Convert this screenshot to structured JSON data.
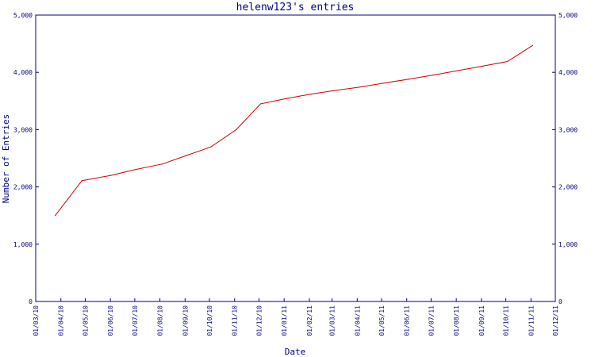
{
  "chart_data": {
    "type": "line",
    "title": "helenw123's entries",
    "xlabel": "Date",
    "ylabel": "Number of Entries",
    "x_ticks": [
      "01/03/10",
      "01/04/10",
      "01/05/10",
      "01/06/10",
      "01/07/10",
      "01/08/10",
      "01/09/10",
      "01/10/10",
      "01/11/10",
      "01/12/10",
      "01/01/11",
      "01/02/11",
      "01/03/11",
      "01/04/11",
      "01/05/11",
      "01/06/11",
      "01/07/11",
      "01/08/11",
      "01/09/11",
      "01/10/11",
      "01/11/11",
      "01/12/11"
    ],
    "y_ticks": [
      "0",
      "1,000",
      "2,000",
      "3,000",
      "4,000",
      "5,000"
    ],
    "ylim": [
      0,
      5000
    ],
    "xlim": [
      "2010-03-01",
      "2011-12-01"
    ],
    "grid": false,
    "colors": {
      "axis": "#000080",
      "line": "#cc0000",
      "background": "#ffffff"
    },
    "series": [
      {
        "x": [
          "2010-03-25",
          "2010-04-27",
          "2010-06-01",
          "2010-07-01",
          "2010-08-04",
          "2010-09-03",
          "2010-10-03",
          "2010-11-03",
          "2010-12-03",
          "2011-01-03",
          "2011-02-03",
          "2011-03-03",
          "2011-04-03",
          "2011-05-03",
          "2011-06-03",
          "2011-07-03",
          "2011-08-03",
          "2011-09-03",
          "2011-10-03",
          "2011-11-03"
        ],
        "values": [
          1500,
          2110,
          2200,
          2300,
          2400,
          2550,
          2700,
          3000,
          3450,
          3540,
          3620,
          3680,
          3740,
          3810,
          3880,
          3950,
          4030,
          4110,
          4190,
          4470
        ]
      }
    ]
  }
}
